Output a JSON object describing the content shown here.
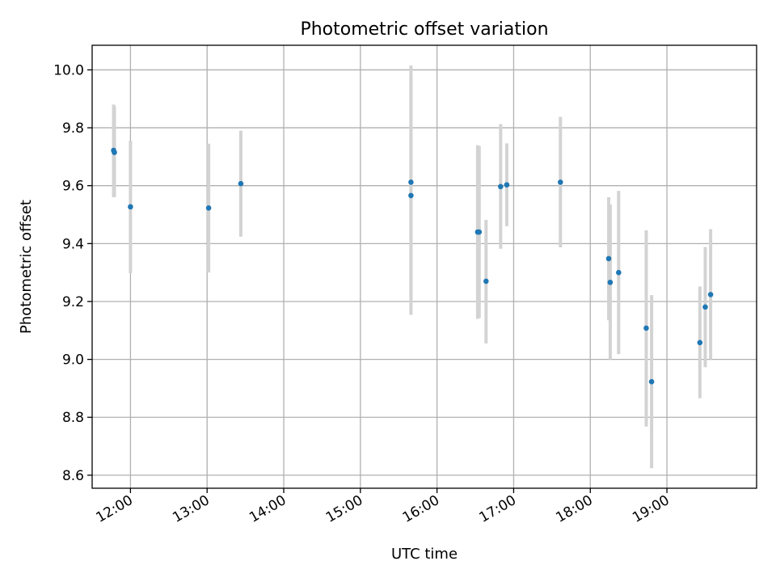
{
  "chart_data": {
    "type": "scatter",
    "title": "Photometric offset variation",
    "xlabel": "UTC time",
    "ylabel": "Photometric offset",
    "grid": true,
    "x_unit": "hours UTC",
    "xlim": [
      11.5,
      20.17
    ],
    "ylim": [
      8.555,
      10.085
    ],
    "xticks": [
      {
        "value": 12,
        "label": "12:00"
      },
      {
        "value": 13,
        "label": "13:00"
      },
      {
        "value": 14,
        "label": "14:00"
      },
      {
        "value": 15,
        "label": "15:00"
      },
      {
        "value": 16,
        "label": "16:00"
      },
      {
        "value": 17,
        "label": "17:00"
      },
      {
        "value": 18,
        "label": "18:00"
      },
      {
        "value": 19,
        "label": "19:00"
      }
    ],
    "yticks": [
      {
        "value": 8.6,
        "label": "8.6"
      },
      {
        "value": 8.8,
        "label": "8.8"
      },
      {
        "value": 9.0,
        "label": "9.0"
      },
      {
        "value": 9.2,
        "label": "9.2"
      },
      {
        "value": 9.4,
        "label": "9.4"
      },
      {
        "value": 9.6,
        "label": "9.6"
      },
      {
        "value": 9.8,
        "label": "9.8"
      },
      {
        "value": 10.0,
        "label": "10.0"
      }
    ],
    "series": [
      {
        "name": "offset",
        "color": "#1f77b4",
        "errorbar_color": "#d3d3d3",
        "points": [
          {
            "x": 11.78,
            "y": 9.722,
            "err_low": 9.56,
            "err_high": 9.88
          },
          {
            "x": 11.79,
            "y": 9.715,
            "err_low": 9.56,
            "err_high": 9.875
          },
          {
            "x": 12.0,
            "y": 9.527,
            "err_low": 9.298,
            "err_high": 9.755
          },
          {
            "x": 13.02,
            "y": 9.523,
            "err_low": 9.3,
            "err_high": 9.745
          },
          {
            "x": 13.44,
            "y": 9.607,
            "err_low": 9.424,
            "err_high": 9.79
          },
          {
            "x": 15.66,
            "y": 9.612,
            "err_low": 9.21,
            "err_high": 10.015
          },
          {
            "x": 15.66,
            "y": 9.566,
            "err_low": 9.154,
            "err_high": 9.978
          },
          {
            "x": 16.53,
            "y": 9.44,
            "err_low": 9.14,
            "err_high": 9.74
          },
          {
            "x": 16.55,
            "y": 9.44,
            "err_low": 9.143,
            "err_high": 9.737
          },
          {
            "x": 16.64,
            "y": 9.27,
            "err_low": 9.055,
            "err_high": 9.482
          },
          {
            "x": 16.83,
            "y": 9.597,
            "err_low": 9.382,
            "err_high": 9.813
          },
          {
            "x": 16.91,
            "y": 9.603,
            "err_low": 9.46,
            "err_high": 9.746
          },
          {
            "x": 17.61,
            "y": 9.612,
            "err_low": 9.387,
            "err_high": 9.838
          },
          {
            "x": 18.24,
            "y": 9.348,
            "err_low": 9.135,
            "err_high": 9.56
          },
          {
            "x": 18.26,
            "y": 9.266,
            "err_low": 9.0,
            "err_high": 9.535
          },
          {
            "x": 18.37,
            "y": 9.3,
            "err_low": 9.018,
            "err_high": 9.582
          },
          {
            "x": 18.73,
            "y": 9.108,
            "err_low": 8.768,
            "err_high": 9.446
          },
          {
            "x": 18.8,
            "y": 8.923,
            "err_low": 8.624,
            "err_high": 9.222
          },
          {
            "x": 19.43,
            "y": 9.058,
            "err_low": 8.866,
            "err_high": 9.252
          },
          {
            "x": 19.5,
            "y": 9.181,
            "err_low": 8.973,
            "err_high": 9.388
          },
          {
            "x": 19.57,
            "y": 9.224,
            "err_low": 9.0,
            "err_high": 9.45
          }
        ]
      }
    ]
  }
}
